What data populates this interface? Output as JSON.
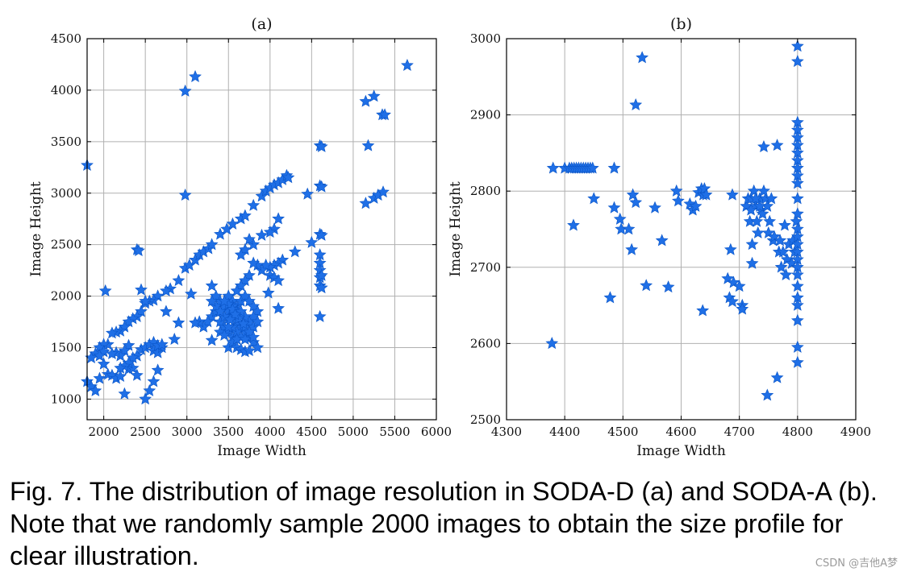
{
  "chart_data": [
    {
      "type": "scatter",
      "title": "(a)",
      "xlabel": "Image Width",
      "ylabel": "Image Height",
      "xlim": [
        1800,
        6000
      ],
      "ylim": [
        800,
        4500
      ],
      "xticks": [
        2000,
        2500,
        3000,
        3500,
        4000,
        4500,
        5000,
        5500,
        6000
      ],
      "yticks": [
        1000,
        1500,
        2000,
        2500,
        3000,
        3500,
        4000,
        4500
      ],
      "marker": "star",
      "color": "#1f6fe6",
      "grid": true,
      "points": [
        [
          1800,
          3270
        ],
        [
          2980,
          3990
        ],
        [
          3100,
          4130
        ],
        [
          5650,
          4240
        ],
        [
          5150,
          3890
        ],
        [
          5250,
          3940
        ],
        [
          5350,
          3760
        ],
        [
          5380,
          3760
        ],
        [
          5180,
          3460
        ],
        [
          4600,
          3460
        ],
        [
          4620,
          3450
        ],
        [
          5150,
          2900
        ],
        [
          5250,
          2950
        ],
        [
          5300,
          2980
        ],
        [
          5360,
          3010
        ],
        [
          2980,
          2980
        ],
        [
          4450,
          2990
        ],
        [
          4600,
          3070
        ],
        [
          4620,
          3060
        ],
        [
          4600,
          2600
        ],
        [
          4620,
          2590
        ],
        [
          4500,
          2520
        ],
        [
          4600,
          2400
        ],
        [
          4600,
          2320
        ],
        [
          4600,
          2250
        ],
        [
          4600,
          2180
        ],
        [
          4600,
          2100
        ],
        [
          4620,
          2080
        ],
        [
          4620,
          2200
        ],
        [
          4600,
          1800
        ],
        [
          2400,
          2450
        ],
        [
          2420,
          2440
        ],
        [
          2020,
          2050
        ],
        [
          2450,
          2060
        ],
        [
          2980,
          2270
        ],
        [
          3030,
          2300
        ],
        [
          3100,
          2350
        ],
        [
          3150,
          2400
        ],
        [
          3200,
          2430
        ],
        [
          3260,
          2460
        ],
        [
          3300,
          2500
        ],
        [
          3400,
          2600
        ],
        [
          3480,
          2650
        ],
        [
          3550,
          2700
        ],
        [
          3650,
          2750
        ],
        [
          3700,
          2780
        ],
        [
          3800,
          2880
        ],
        [
          3900,
          2970
        ],
        [
          3950,
          3020
        ],
        [
          4000,
          3050
        ],
        [
          4050,
          3080
        ],
        [
          4100,
          3100
        ],
        [
          4150,
          3130
        ],
        [
          4200,
          3170
        ],
        [
          4220,
          3150
        ],
        [
          4100,
          2750
        ],
        [
          4050,
          2650
        ],
        [
          4000,
          2620
        ],
        [
          3900,
          2590
        ],
        [
          3800,
          2500
        ],
        [
          3750,
          2550
        ],
        [
          3700,
          2450
        ],
        [
          3650,
          2400
        ],
        [
          4300,
          2430
        ],
        [
          4150,
          2350
        ],
        [
          4100,
          2320
        ],
        [
          4050,
          2300
        ],
        [
          4000,
          2280
        ],
        [
          3950,
          2300
        ],
        [
          3900,
          2250
        ],
        [
          3850,
          2300
        ],
        [
          3800,
          2320
        ],
        [
          3750,
          2200
        ],
        [
          3700,
          2150
        ],
        [
          3650,
          2100
        ],
        [
          3600,
          2050
        ],
        [
          4000,
          2200
        ],
        [
          4050,
          2180
        ],
        [
          4100,
          2150
        ],
        [
          3980,
          2030
        ],
        [
          4100,
          1880
        ],
        [
          3300,
          2100
        ],
        [
          3350,
          2000
        ],
        [
          3400,
          1950
        ],
        [
          3450,
          1900
        ],
        [
          3500,
          1850
        ],
        [
          3550,
          1800
        ],
        [
          3600,
          1750
        ],
        [
          3650,
          1700
        ],
        [
          3700,
          1650
        ],
        [
          3750,
          1600
        ],
        [
          3800,
          1550
        ],
        [
          3850,
          1500
        ],
        [
          3400,
          1750
        ],
        [
          3450,
          1700
        ],
        [
          3500,
          1650
        ],
        [
          3550,
          1600
        ],
        [
          3300,
          1800
        ],
        [
          3350,
          1850
        ],
        [
          3250,
          1750
        ],
        [
          3200,
          1700
        ],
        [
          3150,
          1750
        ],
        [
          3400,
          1650
        ],
        [
          3500,
          1500
        ],
        [
          3550,
          1550
        ],
        [
          3600,
          1500
        ],
        [
          3650,
          1480
        ],
        [
          3700,
          1460
        ],
        [
          3750,
          1470
        ],
        [
          3500,
          2000
        ],
        [
          3550,
          1950
        ],
        [
          3600,
          1900
        ],
        [
          3650,
          1950
        ],
        [
          3700,
          2000
        ],
        [
          3750,
          1950
        ],
        [
          3800,
          1900
        ],
        [
          3850,
          1850
        ],
        [
          3800,
          1800
        ],
        [
          3750,
          1750
        ],
        [
          3700,
          1800
        ],
        [
          3600,
          1850
        ],
        [
          3550,
          1900
        ],
        [
          3500,
          1780
        ],
        [
          3450,
          1800
        ],
        [
          3400,
          1850
        ],
        [
          3350,
          1900
        ],
        [
          3300,
          1950
        ],
        [
          3650,
          1850
        ],
        [
          3700,
          1700
        ],
        [
          3600,
          1650
        ],
        [
          3550,
          1700
        ],
        [
          3800,
          1700
        ],
        [
          3850,
          1750
        ],
        [
          3750,
          1650
        ],
        [
          3650,
          1600
        ],
        [
          3600,
          1580
        ],
        [
          3700,
          1580
        ],
        [
          3800,
          1600
        ],
        [
          3500,
          1700
        ],
        [
          3450,
          1620
        ],
        [
          3300,
          1570
        ],
        [
          3100,
          1740
        ],
        [
          3050,
          2020
        ],
        [
          2900,
          2150
        ],
        [
          2800,
          2070
        ],
        [
          2750,
          2050
        ],
        [
          2650,
          2000
        ],
        [
          2600,
          1960
        ],
        [
          2550,
          1950
        ],
        [
          2500,
          1930
        ],
        [
          2450,
          1850
        ],
        [
          2400,
          1800
        ],
        [
          2350,
          1780
        ],
        [
          2300,
          1750
        ],
        [
          2250,
          1700
        ],
        [
          2200,
          1660
        ],
        [
          2150,
          1650
        ],
        [
          2100,
          1640
        ],
        [
          2050,
          1530
        ],
        [
          2000,
          1530
        ],
        [
          1950,
          1500
        ],
        [
          1900,
          1440
        ],
        [
          1850,
          1400
        ],
        [
          1800,
          1170
        ],
        [
          1850,
          1120
        ],
        [
          1900,
          1080
        ],
        [
          1950,
          1200
        ],
        [
          2000,
          1340
        ],
        [
          2050,
          1240
        ],
        [
          2100,
          1230
        ],
        [
          2150,
          1200
        ],
        [
          2200,
          1220
        ],
        [
          2250,
          1050
        ],
        [
          2300,
          1290
        ],
        [
          2350,
          1300
        ],
        [
          2400,
          1230
        ],
        [
          2450,
          1480
        ],
        [
          2500,
          1500
        ],
        [
          2550,
          1530
        ],
        [
          2600,
          1470
        ],
        [
          2650,
          1450
        ],
        [
          2700,
          1500
        ],
        [
          2300,
          1520
        ],
        [
          2250,
          1470
        ],
        [
          2200,
          1420
        ],
        [
          2150,
          1450
        ],
        [
          2100,
          1440
        ],
        [
          2000,
          1460
        ],
        [
          1950,
          1420
        ],
        [
          2500,
          1000
        ],
        [
          2550,
          1080
        ],
        [
          2600,
          1170
        ],
        [
          2650,
          1280
        ],
        [
          2400,
          1420
        ],
        [
          2350,
          1400
        ],
        [
          2300,
          1350
        ],
        [
          2250,
          1320
        ],
        [
          2200,
          1300
        ],
        [
          2850,
          1580
        ],
        [
          2900,
          1740
        ],
        [
          2750,
          1850
        ],
        [
          2500,
          1950
        ],
        [
          2600,
          1550
        ],
        [
          2650,
          1520
        ],
        [
          2700,
          1530
        ],
        [
          3400,
          1850
        ],
        [
          3500,
          1920
        ],
        [
          3550,
          1870
        ],
        [
          3450,
          1950
        ],
        [
          3620,
          1780
        ],
        [
          3680,
          1730
        ],
        [
          3580,
          1820
        ],
        [
          3520,
          1770
        ]
      ]
    },
    {
      "type": "scatter",
      "title": "(b)",
      "xlabel": "Image Width",
      "ylabel": "Image Height",
      "xlim": [
        4300,
        4900
      ],
      "ylim": [
        2500,
        3000
      ],
      "xticks": [
        4300,
        4400,
        4500,
        4600,
        4700,
        4800,
        4900
      ],
      "yticks": [
        2500,
        2600,
        2700,
        2800,
        2900,
        3000
      ],
      "marker": "star",
      "color": "#1f6fe6",
      "grid": true,
      "points": [
        [
          4378,
          2600
        ],
        [
          4380,
          2830
        ],
        [
          4400,
          2830
        ],
        [
          4408,
          2830
        ],
        [
          4412,
          2830
        ],
        [
          4416,
          2830
        ],
        [
          4420,
          2830
        ],
        [
          4424,
          2830
        ],
        [
          4428,
          2830
        ],
        [
          4432,
          2830
        ],
        [
          4436,
          2830
        ],
        [
          4440,
          2830
        ],
        [
          4444,
          2830
        ],
        [
          4448,
          2830
        ],
        [
          4485,
          2830
        ],
        [
          4415,
          2755
        ],
        [
          4450,
          2790
        ],
        [
          4478,
          2660
        ],
        [
          4485,
          2778
        ],
        [
          4495,
          2763
        ],
        [
          4497,
          2750
        ],
        [
          4510,
          2750
        ],
        [
          4515,
          2723
        ],
        [
          4517,
          2795
        ],
        [
          4522,
          2913
        ],
        [
          4522,
          2785
        ],
        [
          4533,
          2975
        ],
        [
          4540,
          2676
        ],
        [
          4555,
          2778
        ],
        [
          4567,
          2735
        ],
        [
          4578,
          2674
        ],
        [
          4592,
          2800
        ],
        [
          4595,
          2787
        ],
        [
          4615,
          2783
        ],
        [
          4620,
          2775
        ],
        [
          4625,
          2780
        ],
        [
          4630,
          2798
        ],
        [
          4635,
          2803
        ],
        [
          4638,
          2795
        ],
        [
          4640,
          2803
        ],
        [
          4637,
          2643
        ],
        [
          4643,
          2795
        ],
        [
          4680,
          2685
        ],
        [
          4683,
          2660
        ],
        [
          4688,
          2655
        ],
        [
          4690,
          2680
        ],
        [
          4685,
          2723
        ],
        [
          4688,
          2795
        ],
        [
          4700,
          2675
        ],
        [
          4705,
          2650
        ],
        [
          4705,
          2645
        ],
        [
          4712,
          2780
        ],
        [
          4715,
          2790
        ],
        [
          4718,
          2760
        ],
        [
          4720,
          2790
        ],
        [
          4722,
          2730
        ],
        [
          4722,
          2705
        ],
        [
          4725,
          2800
        ],
        [
          4728,
          2780
        ],
        [
          4730,
          2760
        ],
        [
          4732,
          2745
        ],
        [
          4735,
          2790
        ],
        [
          4738,
          2775
        ],
        [
          4740,
          2770
        ],
        [
          4742,
          2858
        ],
        [
          4745,
          2790
        ],
        [
          4748,
          2780
        ],
        [
          4750,
          2745
        ],
        [
          4752,
          2760
        ],
        [
          4755,
          2790
        ],
        [
          4758,
          2735
        ],
        [
          4760,
          2740
        ],
        [
          4765,
          2860
        ],
        [
          4768,
          2720
        ],
        [
          4770,
          2735
        ],
        [
          4772,
          2700
        ],
        [
          4775,
          2720
        ],
        [
          4778,
          2755
        ],
        [
          4780,
          2690
        ],
        [
          4782,
          2710
        ],
        [
          4785,
          2730
        ],
        [
          4790,
          2705
        ],
        [
          4792,
          2735
        ],
        [
          4795,
          2720
        ],
        [
          4798,
          2760
        ],
        [
          4800,
          2990
        ],
        [
          4800,
          2970
        ],
        [
          4800,
          2890
        ],
        [
          4800,
          2880
        ],
        [
          4800,
          2870
        ],
        [
          4800,
          2860
        ],
        [
          4800,
          2850
        ],
        [
          4800,
          2840
        ],
        [
          4800,
          2830
        ],
        [
          4800,
          2820
        ],
        [
          4800,
          2810
        ],
        [
          4800,
          2790
        ],
        [
          4800,
          2770
        ],
        [
          4800,
          2750
        ],
        [
          4800,
          2740
        ],
        [
          4800,
          2730
        ],
        [
          4800,
          2720
        ],
        [
          4800,
          2710
        ],
        [
          4800,
          2700
        ],
        [
          4800,
          2690
        ],
        [
          4800,
          2675
        ],
        [
          4800,
          2660
        ],
        [
          4800,
          2650
        ],
        [
          4800,
          2630
        ],
        [
          4800,
          2595
        ],
        [
          4800,
          2575
        ],
        [
          4765,
          2555
        ],
        [
          4748,
          2532
        ],
        [
          4735,
          2780
        ],
        [
          4728,
          2790
        ],
        [
          4720,
          2775
        ],
        [
          4742,
          2800
        ]
      ]
    }
  ],
  "caption": "Fig. 7. The distribution of image resolution in SODA-D (a) and SODA-A (b). Note that we randomly sample 2000 images to obtain the size profile for clear illustration.",
  "watermark": "CSDN @吉他A梦"
}
